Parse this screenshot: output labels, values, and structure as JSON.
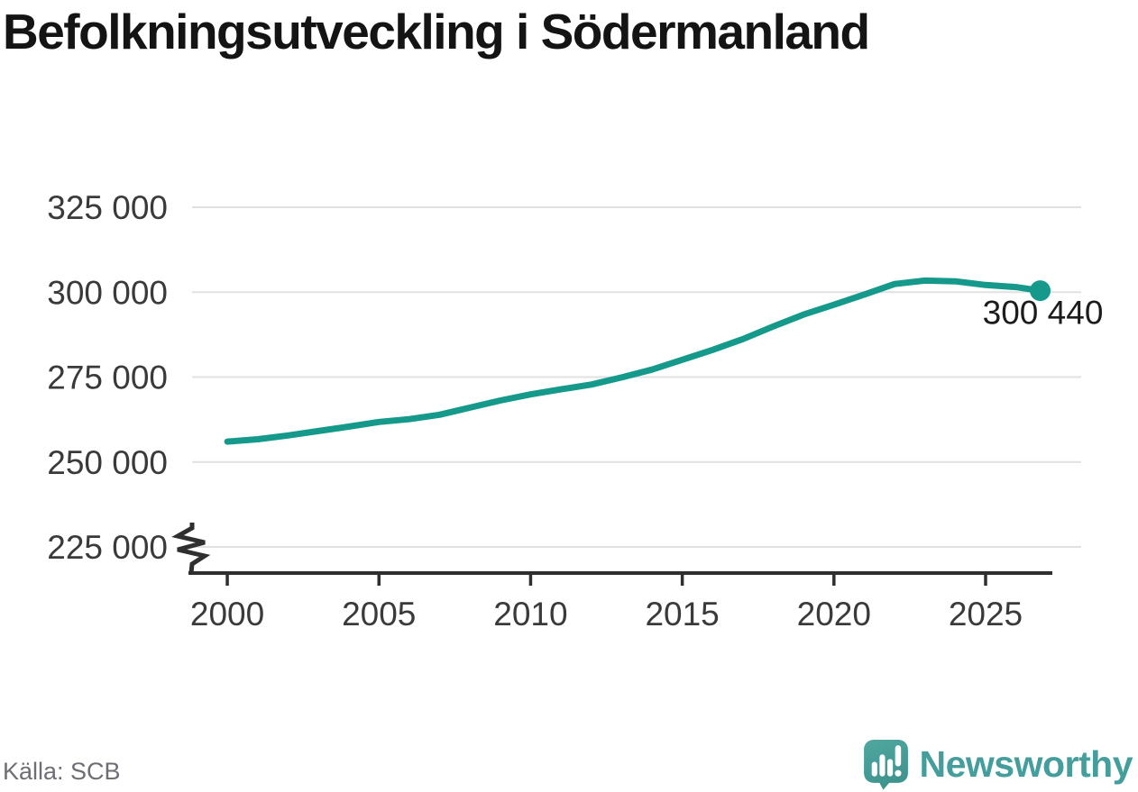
{
  "title": "Befolkningsutveckling i Södermanland",
  "source": "Källa: SCB",
  "branding": {
    "logo_text": "Newsworthy",
    "logo_icon": "newsworthy-speech-bubble-bars-icon"
  },
  "colors": {
    "accent_line": "#14998a",
    "end_dot": "#14998a",
    "grid": "#e1e1e1",
    "axis": "#2f2f2f",
    "tick_label": "#3a3a3a",
    "end_label": "#1c1c1c",
    "title": "#141414",
    "source_text": "#6e6e76",
    "logo_bubble_top": "#4fa8a1",
    "logo_bubble_bottom": "#3f938d",
    "logo_text_color": "#459e9c"
  },
  "chart_data": {
    "type": "line",
    "title": "Befolkningsutveckling i Södermanland",
    "xlabel": "",
    "ylabel": "",
    "grid": true,
    "legend": "none",
    "axis_break_bottom": true,
    "xlim": [
      1998.72,
      2027.2
    ],
    "ylim_display": [
      225000,
      325000
    ],
    "x": [
      2000,
      2001,
      2002,
      2003,
      2004,
      2005,
      2006,
      2007,
      2008,
      2009,
      2010,
      2011,
      2012,
      2013,
      2014,
      2015,
      2016,
      2017,
      2018,
      2019,
      2020,
      2021,
      2022,
      2023,
      2024,
      2025,
      2026,
      2026.8
    ],
    "values": [
      256000,
      256700,
      257800,
      259100,
      260400,
      261800,
      262600,
      263900,
      266000,
      268100,
      269900,
      271400,
      272800,
      274900,
      277200,
      280100,
      283000,
      286200,
      289900,
      293400,
      296300,
      299300,
      302400,
      303400,
      303200,
      302100,
      301500,
      300440
    ],
    "end_point": {
      "x": 2026.8,
      "value": 300440,
      "label": "300 440"
    },
    "y_ticks": [
      {
        "value": 325000,
        "label": "325 000"
      },
      {
        "value": 300000,
        "label": "300 000"
      },
      {
        "value": 275000,
        "label": "275 000"
      },
      {
        "value": 250000,
        "label": "250 000"
      },
      {
        "value": 225000,
        "label": "225 000"
      }
    ],
    "x_ticks": [
      {
        "value": 2000,
        "label": "2000"
      },
      {
        "value": 2005,
        "label": "2005"
      },
      {
        "value": 2010,
        "label": "2010"
      },
      {
        "value": 2015,
        "label": "2015"
      },
      {
        "value": 2020,
        "label": "2020"
      },
      {
        "value": 2025,
        "label": "2025"
      }
    ]
  }
}
